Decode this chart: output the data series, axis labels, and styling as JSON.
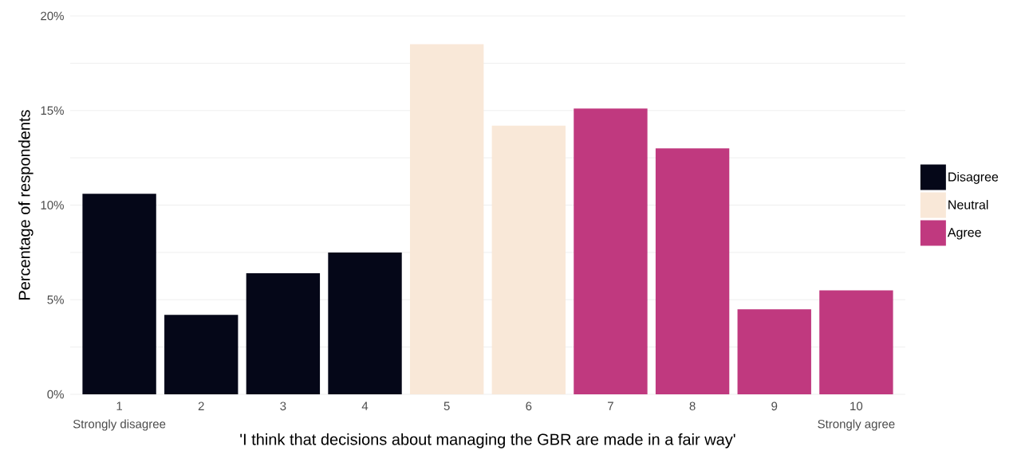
{
  "chart_data": {
    "type": "bar",
    "xlabel": "'I think that decisions about managing the GBR are made in a fair way'",
    "ylabel": "Percentage of respondents",
    "categories": [
      "1",
      "2",
      "3",
      "4",
      "5",
      "6",
      "7",
      "8",
      "9",
      "10"
    ],
    "series": [
      {
        "name": "Disagree",
        "color": "#050718",
        "values": [
          10.6,
          4.2,
          6.4,
          7.5,
          null,
          null,
          null,
          null,
          null,
          null
        ]
      },
      {
        "name": "Neutral",
        "color": "#f9e8d8",
        "values": [
          null,
          null,
          null,
          null,
          18.5,
          14.2,
          null,
          null,
          null,
          null
        ]
      },
      {
        "name": "Agree",
        "color": "#c0397f",
        "values": [
          null,
          null,
          null,
          null,
          null,
          null,
          15.1,
          13,
          4.5,
          5.5
        ]
      }
    ],
    "ylim": [
      0,
      20
    ],
    "yticks": [
      {
        "value": 0,
        "label": "0%"
      },
      {
        "value": 5,
        "label": "5%"
      },
      {
        "value": 10,
        "label": "10%"
      },
      {
        "value": 15,
        "label": "15%"
      },
      {
        "value": 20,
        "label": "20%"
      }
    ],
    "grid": "y",
    "legend": "right",
    "annotations": [
      "Strongly disagree",
      "Strongly agree"
    ]
  }
}
